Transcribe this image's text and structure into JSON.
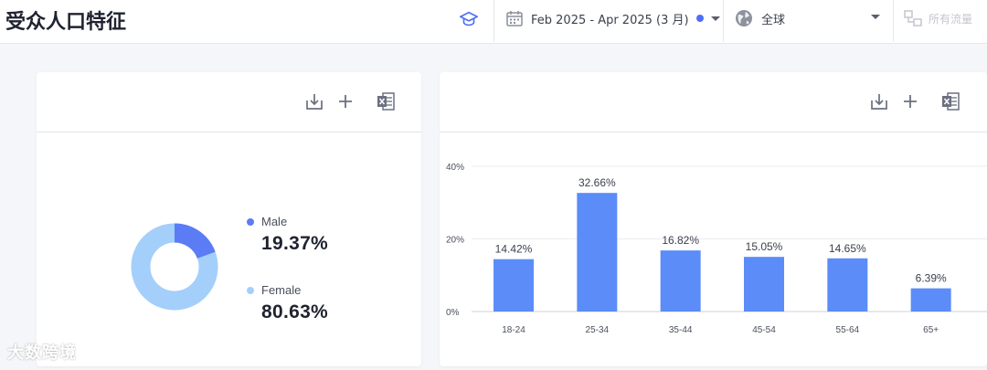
{
  "header": {
    "title": "受众人口特征",
    "date_range": "Feb 2025 - Apr 2025 (3 月)",
    "region": "全球",
    "traffic": "所有流量"
  },
  "icons": {
    "education": "graduation-cap-icon",
    "calendar": "calendar-icon",
    "globe": "globe-icon",
    "traffic": "traffic-source-icon",
    "download": "download-icon",
    "add": "plus-icon",
    "excel": "excel-icon"
  },
  "colors": {
    "accent": "#4f6ef7",
    "male": "#5b7cf5",
    "female": "#a3cffa",
    "bar": "#5b8cf8"
  },
  "gender": {
    "male": {
      "label": "Male",
      "value": "19.37%"
    },
    "female": {
      "label": "Female",
      "value": "80.63%"
    }
  },
  "chart_data": [
    {
      "type": "pie",
      "categories": [
        "Male",
        "Female"
      ],
      "values": [
        19.37,
        80.63
      ]
    },
    {
      "type": "bar",
      "categories": [
        "18-24",
        "25-34",
        "35-44",
        "45-54",
        "55-64",
        "65+"
      ],
      "values": [
        14.42,
        32.66,
        16.82,
        15.05,
        14.65,
        6.39
      ],
      "data_labels": [
        "14.42%",
        "32.66%",
        "16.82%",
        "15.05%",
        "14.65%",
        "6.39%"
      ],
      "y_ticks": [
        "0%",
        "20%",
        "40%"
      ],
      "ylim": [
        0,
        40
      ],
      "grid": true
    }
  ],
  "watermark": "大数跨境"
}
